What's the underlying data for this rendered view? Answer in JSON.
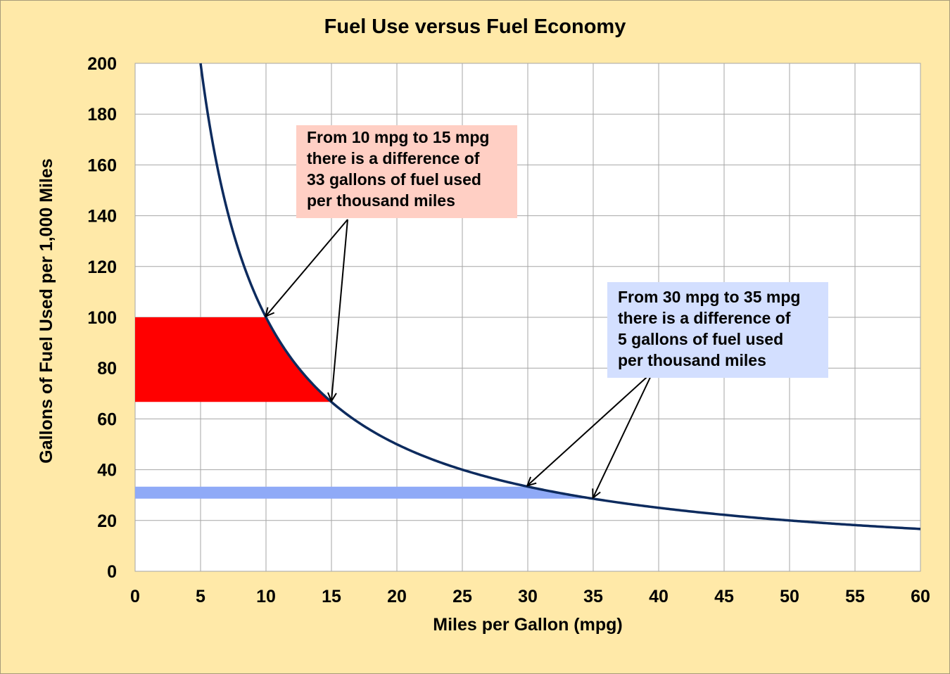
{
  "chart_data": {
    "type": "line",
    "title": "Fuel Use versus Fuel Economy",
    "xlabel": "Miles per Gallon (mpg)",
    "ylabel": "Gallons of Fuel Used per 1,000 Miles",
    "xlim": [
      0,
      60
    ],
    "ylim": [
      0,
      200
    ],
    "xticks": [
      0,
      5,
      10,
      15,
      20,
      25,
      30,
      35,
      40,
      45,
      50,
      55,
      60
    ],
    "yticks": [
      0,
      20,
      40,
      60,
      80,
      100,
      120,
      140,
      160,
      180,
      200
    ],
    "grid": true,
    "legend": "none",
    "series": [
      {
        "x": [
          5,
          6,
          7,
          8,
          9,
          10,
          12,
          15,
          17.5,
          20,
          25,
          30,
          35,
          40,
          45,
          50,
          55,
          60
        ],
        "values": [
          200,
          166.7,
          142.9,
          125,
          111.1,
          100,
          83.3,
          66.7,
          57.1,
          50,
          40,
          33.3,
          28.6,
          25,
          22.2,
          20,
          18.2,
          16.7
        ],
        "color": "#0d2b5e"
      }
    ],
    "bands": [
      {
        "x_from": 10,
        "x_to": 15,
        "y_from": 66.7,
        "y_to": 100,
        "color": "#ff0000"
      },
      {
        "x_from": 30,
        "x_to": 35,
        "y_from": 28.6,
        "y_to": 33.3,
        "color": "#8faaf7"
      }
    ],
    "annotations": [
      {
        "lines": [
          "From 10 mpg to 15 mpg",
          "there is a difference of",
          "33 gallons of fuel used",
          "per thousand miles"
        ],
        "points_to_x": [
          10,
          15
        ],
        "color": "#ffcfc4"
      },
      {
        "lines": [
          "From 30 mpg to 35 mpg",
          "there is a difference of",
          "5 gallons of fuel used",
          "per thousand miles"
        ],
        "points_to_x": [
          30,
          35
        ],
        "color": "#d3dfff"
      }
    ]
  }
}
